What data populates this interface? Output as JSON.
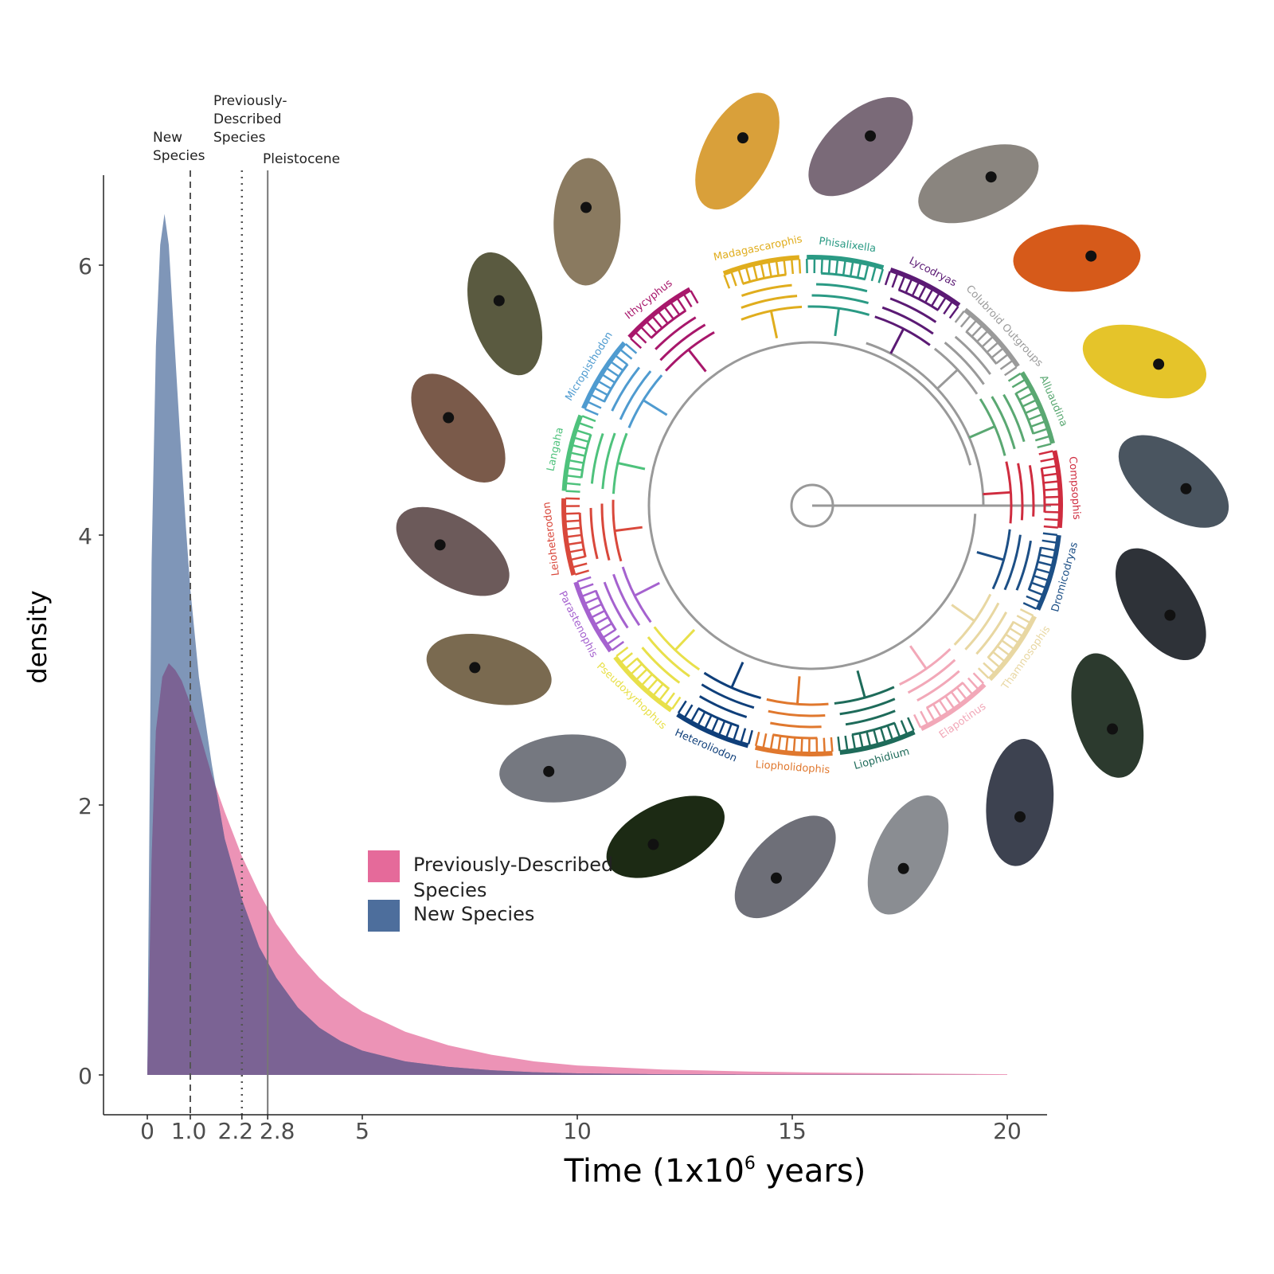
{
  "chart_data": {
    "type": "area",
    "xlabel": "Time (1x10",
    "xlabel_sup": "6",
    "xlabel_tail": " years)",
    "ylabel": "density",
    "xlim": [
      -1,
      20.9
    ],
    "ylim": [
      -0.3,
      6.75
    ],
    "x_ticks": [
      0,
      1.0,
      2.2,
      2.8,
      5,
      10,
      15,
      20
    ],
    "x_tick_labels": [
      "0",
      "1.0",
      "2.2",
      "2.8",
      "5",
      "10",
      "15",
      "20"
    ],
    "y_ticks": [
      0,
      2,
      4,
      6
    ],
    "y_tick_labels": [
      "0",
      "2",
      "4",
      "6"
    ],
    "series": [
      {
        "name": "Previously-Described Species",
        "color": "#e56a9a",
        "x": [
          0,
          0.1,
          0.2,
          0.35,
          0.5,
          0.65,
          0.8,
          1.0,
          1.2,
          1.5,
          1.8,
          2.2,
          2.6,
          3.0,
          3.5,
          4.0,
          4.5,
          5.0,
          6.0,
          7.0,
          8.0,
          9.0,
          10,
          12,
          14,
          16,
          18,
          20
        ],
        "values": [
          0.0,
          1.6,
          2.55,
          2.95,
          3.05,
          3.0,
          2.92,
          2.75,
          2.55,
          2.22,
          1.95,
          1.62,
          1.35,
          1.12,
          0.9,
          0.72,
          0.58,
          0.47,
          0.32,
          0.22,
          0.15,
          0.1,
          0.07,
          0.04,
          0.025,
          0.016,
          0.01,
          0.005
        ]
      },
      {
        "name": "New Species",
        "color": "#4d6e9c",
        "x": [
          0,
          0.1,
          0.2,
          0.3,
          0.4,
          0.5,
          0.6,
          0.75,
          0.9,
          1.0,
          1.2,
          1.5,
          1.8,
          2.2,
          2.6,
          3.0,
          3.5,
          4.0,
          4.5,
          5.0,
          6.0,
          7.0,
          8.0,
          9.0,
          10,
          12,
          14,
          16,
          18,
          20
        ],
        "values": [
          0.0,
          3.8,
          5.4,
          6.15,
          6.38,
          6.15,
          5.6,
          4.8,
          4.05,
          3.6,
          2.95,
          2.3,
          1.75,
          1.3,
          0.95,
          0.72,
          0.5,
          0.35,
          0.25,
          0.18,
          0.1,
          0.06,
          0.035,
          0.02,
          0.012,
          0.005,
          0.003,
          0.002,
          0.001,
          0.0
        ]
      }
    ],
    "overlap_color": "#7b6394",
    "reference_lines": [
      {
        "x": 1.0,
        "style": "dashed",
        "label": [
          "New",
          "Species"
        ]
      },
      {
        "x": 2.2,
        "style": "dotted",
        "label": [
          "Previously-",
          "Described",
          "Species"
        ]
      },
      {
        "x": 2.8,
        "style": "solid",
        "label": [
          "Pleistocene"
        ]
      }
    ],
    "legend": {
      "placement": "center",
      "items": [
        {
          "label": [
            "Previously-Described",
            "Species"
          ],
          "color": "#e56a9a"
        },
        {
          "label": [
            "New Species"
          ],
          "color": "#4d6e9c"
        }
      ]
    },
    "grid": false
  },
  "phylogeny": {
    "clades": [
      {
        "name": "Madagascarophis",
        "color": "#e0ad1d"
      },
      {
        "name": "Phisalixella",
        "color": "#2a9a84"
      },
      {
        "name": "Lycodryas",
        "color": "#5b1a74"
      },
      {
        "name": "Colubroid Outgroups",
        "color": "#9a9a9a"
      },
      {
        "name": "Alluaudina",
        "color": "#5aa872"
      },
      {
        "name": "Compsophis",
        "color": "#cf2c3f"
      },
      {
        "name": "Dromicodryas",
        "color": "#1c4f86"
      },
      {
        "name": "Thamnosophis",
        "color": "#e8d7a2"
      },
      {
        "name": "Elapotinus",
        "color": "#f2a8b8"
      },
      {
        "name": "Liophidium",
        "color": "#1e6b5a"
      },
      {
        "name": "Liopholidophis",
        "color": "#e0782e"
      },
      {
        "name": "Heteroliodon",
        "color": "#0f3f7a"
      },
      {
        "name": "Pseudoxyrhophus",
        "color": "#e8e04a"
      },
      {
        "name": "Parastenophis",
        "color": "#a562cf"
      },
      {
        "name": "Leioheterodon",
        "color": "#d9483b"
      },
      {
        "name": "Langaha",
        "color": "#4ec27c"
      },
      {
        "name": "Micropisthodon",
        "color": "#4f9bd0"
      },
      {
        "name": "Ithycyphus",
        "color": "#a8176b"
      }
    ],
    "photo_colors": [
      "#d9a03a",
      "#7a6a78",
      "#8a857f",
      "#d65a1a",
      "#e5c42a",
      "#4a5560",
      "#2e3238",
      "#2c3a2e",
      "#3d4250",
      "#8a8d92",
      "#6e6f78",
      "#1c2a14",
      "#757880",
      "#7a6a50",
      "#6c5a5a",
      "#7a5a4a",
      "#5a5a40",
      "#8a7a60"
    ]
  }
}
